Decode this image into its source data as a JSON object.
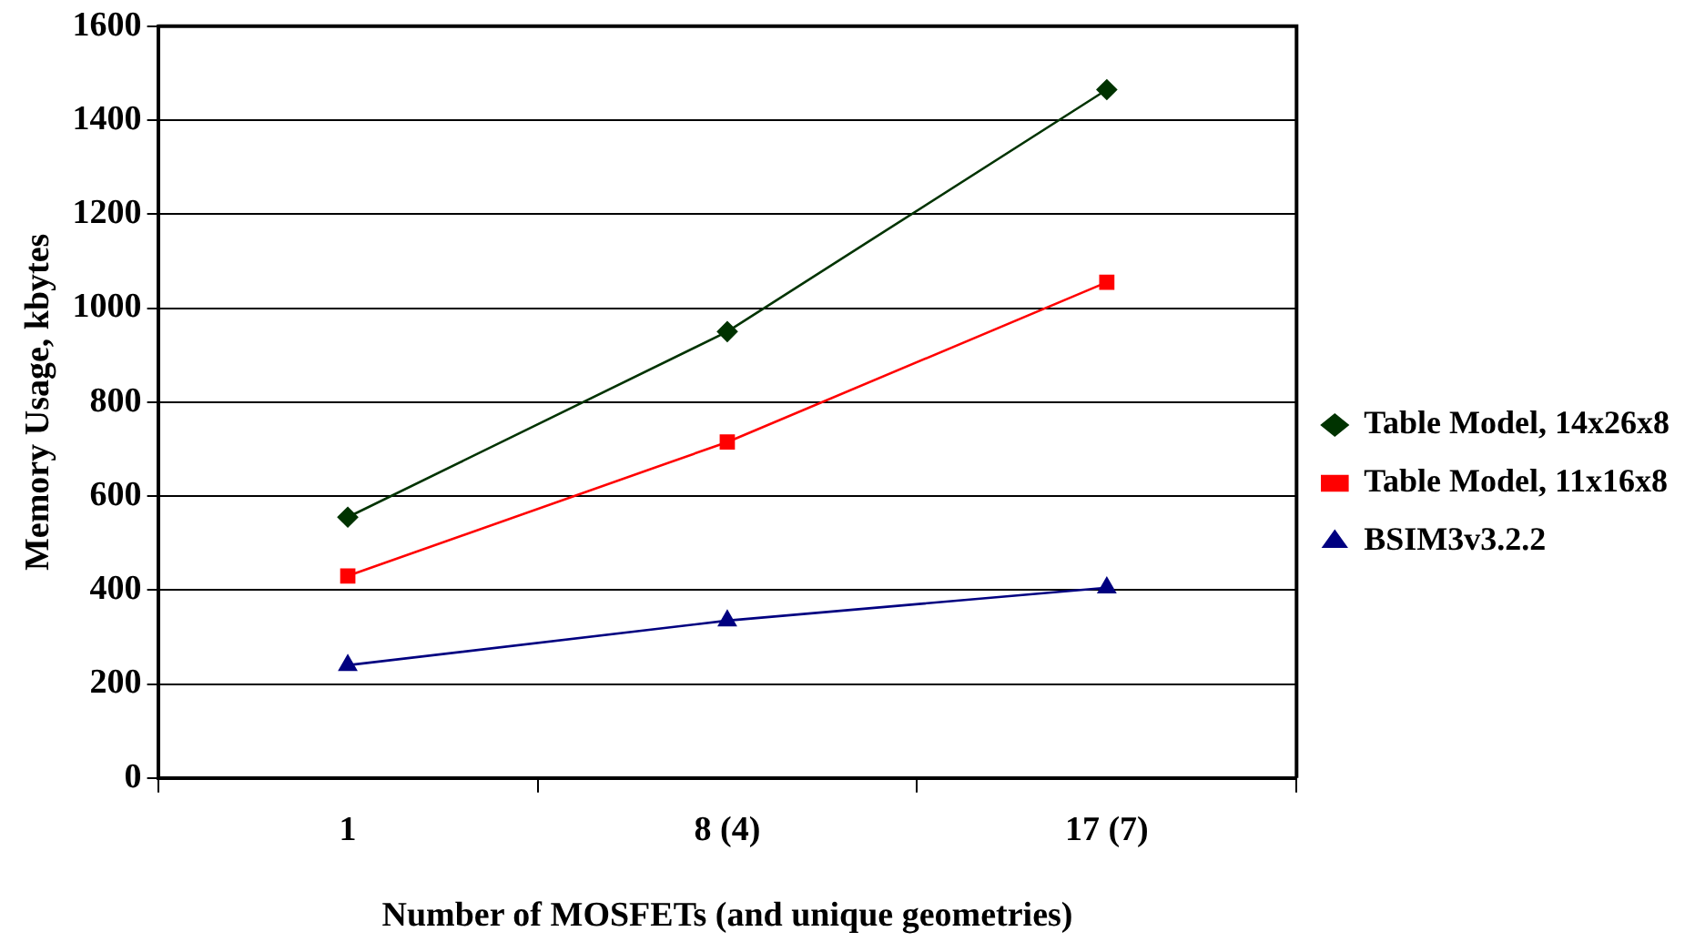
{
  "chart_data": {
    "type": "line",
    "xlabel": "Number of MOSFETs (and unique geometries)",
    "ylabel": "Memory Usage, kbytes",
    "categories": [
      "1",
      "8 (4)",
      "17 (7)"
    ],
    "series": [
      {
        "name": "Table Model, 14x26x8",
        "color": "#003300",
        "marker": "diamond",
        "values": [
          555,
          950,
          1465
        ]
      },
      {
        "name": "Table Model, 11x16x8",
        "color": "#ff0000",
        "marker": "square",
        "values": [
          430,
          715,
          1055
        ]
      },
      {
        "name": "BSIM3v3.2.2",
        "color": "#000080",
        "marker": "triangle",
        "values": [
          240,
          335,
          405
        ]
      }
    ],
    "ylim": [
      0,
      1600
    ],
    "yticks": [
      0,
      200,
      400,
      600,
      800,
      1000,
      1200,
      1400,
      1600
    ],
    "grid": "y",
    "legend": "right",
    "line_style": "solid"
  }
}
